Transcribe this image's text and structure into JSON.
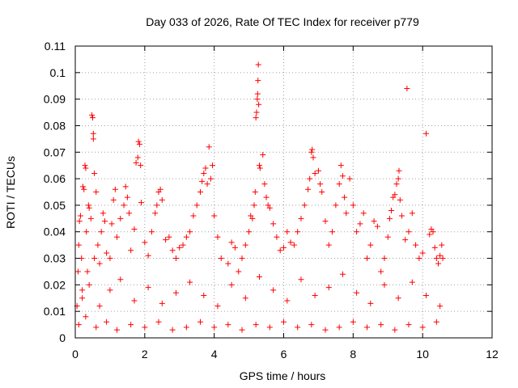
{
  "chart_data": {
    "type": "scatter",
    "title": "Day 033 of 2026, Rate Of TEC Index for receiver p779",
    "xlabel": "GPS time / hours",
    "ylabel": "ROTI / TECUs",
    "xlim": [
      0,
      12
    ],
    "ylim": [
      0,
      0.11
    ],
    "xticks": [
      "0",
      "2",
      "4",
      "6",
      "8",
      "10",
      "12"
    ],
    "yticks": [
      "0",
      "0.01",
      "0.02",
      "0.03",
      "0.04",
      "0.05",
      "0.06",
      "0.07",
      "0.08",
      "0.09",
      "0.1",
      "0.11"
    ],
    "grid": true,
    "marker": "+",
    "marker_color": "#ff0000",
    "series": [
      {
        "name": "p779",
        "points": [
          [
            0.05,
            0.012
          ],
          [
            0.08,
            0.025
          ],
          [
            0.1,
            0.035
          ],
          [
            0.12,
            0.044
          ],
          [
            0.15,
            0.046
          ],
          [
            0.18,
            0.03
          ],
          [
            0.2,
            0.018
          ],
          [
            0.22,
            0.057
          ],
          [
            0.25,
            0.056
          ],
          [
            0.28,
            0.065
          ],
          [
            0.3,
            0.064
          ],
          [
            0.32,
            0.04
          ],
          [
            0.35,
            0.025
          ],
          [
            0.38,
            0.05
          ],
          [
            0.4,
            0.049
          ],
          [
            0.45,
            0.045
          ],
          [
            0.48,
            0.084
          ],
          [
            0.5,
            0.083
          ],
          [
            0.52,
            0.077
          ],
          [
            0.52,
            0.075
          ],
          [
            0.55,
            0.062
          ],
          [
            0.55,
            0.03
          ],
          [
            0.6,
            0.055
          ],
          [
            0.65,
            0.035
          ],
          [
            0.7,
            0.028
          ],
          [
            0.75,
            0.04
          ],
          [
            0.8,
            0.047
          ],
          [
            0.85,
            0.044
          ],
          [
            0.9,
            0.032
          ],
          [
            1.0,
            0.03
          ],
          [
            1.05,
            0.043
          ],
          [
            1.1,
            0.052
          ],
          [
            1.15,
            0.056
          ],
          [
            1.2,
            0.038
          ],
          [
            1.3,
            0.045
          ],
          [
            1.4,
            0.05
          ],
          [
            1.45,
            0.057
          ],
          [
            1.5,
            0.053
          ],
          [
            1.55,
            0.047
          ],
          [
            1.6,
            0.033
          ],
          [
            1.7,
            0.041
          ],
          [
            1.75,
            0.066
          ],
          [
            1.8,
            0.068
          ],
          [
            1.82,
            0.074
          ],
          [
            1.85,
            0.073
          ],
          [
            1.88,
            0.065
          ],
          [
            1.9,
            0.051
          ],
          [
            2.0,
            0.036
          ],
          [
            2.1,
            0.031
          ],
          [
            2.2,
            0.04
          ],
          [
            2.3,
            0.047
          ],
          [
            2.35,
            0.05
          ],
          [
            2.4,
            0.055
          ],
          [
            2.45,
            0.056
          ],
          [
            2.5,
            0.052
          ],
          [
            2.6,
            0.037
          ],
          [
            2.7,
            0.038
          ],
          [
            2.8,
            0.033
          ],
          [
            2.9,
            0.03
          ],
          [
            3.0,
            0.034
          ],
          [
            3.1,
            0.035
          ],
          [
            3.2,
            0.038
          ],
          [
            3.3,
            0.04
          ],
          [
            3.4,
            0.046
          ],
          [
            3.5,
            0.05
          ],
          [
            3.6,
            0.055
          ],
          [
            3.65,
            0.059
          ],
          [
            3.7,
            0.062
          ],
          [
            3.75,
            0.064
          ],
          [
            3.8,
            0.058
          ],
          [
            3.85,
            0.072
          ],
          [
            3.9,
            0.06
          ],
          [
            3.95,
            0.065
          ],
          [
            4.0,
            0.046
          ],
          [
            4.1,
            0.038
          ],
          [
            4.2,
            0.03
          ],
          [
            4.4,
            0.028
          ],
          [
            4.5,
            0.036
          ],
          [
            4.6,
            0.034
          ],
          [
            4.7,
            0.025
          ],
          [
            4.8,
            0.03
          ],
          [
            4.9,
            0.035
          ],
          [
            5.0,
            0.04
          ],
          [
            5.05,
            0.046
          ],
          [
            5.1,
            0.045
          ],
          [
            5.15,
            0.05
          ],
          [
            5.18,
            0.055
          ],
          [
            5.2,
            0.083
          ],
          [
            5.22,
            0.085
          ],
          [
            5.24,
            0.09
          ],
          [
            5.25,
            0.092
          ],
          [
            5.26,
            0.097
          ],
          [
            5.27,
            0.103
          ],
          [
            5.28,
            0.088
          ],
          [
            5.3,
            0.065
          ],
          [
            5.32,
            0.064
          ],
          [
            5.4,
            0.069
          ],
          [
            5.45,
            0.058
          ],
          [
            5.5,
            0.053
          ],
          [
            5.55,
            0.05
          ],
          [
            5.6,
            0.049
          ],
          [
            5.7,
            0.043
          ],
          [
            5.8,
            0.038
          ],
          [
            5.9,
            0.033
          ],
          [
            6.0,
            0.034
          ],
          [
            6.1,
            0.04
          ],
          [
            6.2,
            0.036
          ],
          [
            6.3,
            0.035
          ],
          [
            6.4,
            0.04
          ],
          [
            6.5,
            0.045
          ],
          [
            6.6,
            0.05
          ],
          [
            6.7,
            0.056
          ],
          [
            6.75,
            0.06
          ],
          [
            6.8,
            0.07
          ],
          [
            6.82,
            0.071
          ],
          [
            6.85,
            0.068
          ],
          [
            6.9,
            0.062
          ],
          [
            7.0,
            0.063
          ],
          [
            7.05,
            0.058
          ],
          [
            7.1,
            0.055
          ],
          [
            7.2,
            0.044
          ],
          [
            7.3,
            0.035
          ],
          [
            7.4,
            0.04
          ],
          [
            7.5,
            0.05
          ],
          [
            7.6,
            0.058
          ],
          [
            7.65,
            0.065
          ],
          [
            7.7,
            0.061
          ],
          [
            7.75,
            0.053
          ],
          [
            7.8,
            0.047
          ],
          [
            7.9,
            0.06
          ],
          [
            8.0,
            0.05
          ],
          [
            8.1,
            0.04
          ],
          [
            8.2,
            0.043
          ],
          [
            8.3,
            0.047
          ],
          [
            8.4,
            0.03
          ],
          [
            8.5,
            0.035
          ],
          [
            8.6,
            0.044
          ],
          [
            8.7,
            0.042
          ],
          [
            8.8,
            0.025
          ],
          [
            8.9,
            0.03
          ],
          [
            9.0,
            0.038
          ],
          [
            9.05,
            0.045
          ],
          [
            9.1,
            0.048
          ],
          [
            9.15,
            0.053
          ],
          [
            9.2,
            0.054
          ],
          [
            9.25,
            0.058
          ],
          [
            9.3,
            0.06
          ],
          [
            9.32,
            0.063
          ],
          [
            9.35,
            0.052
          ],
          [
            9.4,
            0.046
          ],
          [
            9.5,
            0.037
          ],
          [
            9.55,
            0.094
          ],
          [
            9.6,
            0.04
          ],
          [
            9.7,
            0.047
          ],
          [
            9.8,
            0.035
          ],
          [
            9.9,
            0.03
          ],
          [
            10.0,
            0.032
          ],
          [
            10.1,
            0.077
          ],
          [
            10.2,
            0.039
          ],
          [
            10.25,
            0.041
          ],
          [
            10.3,
            0.04
          ],
          [
            10.35,
            0.034
          ],
          [
            10.4,
            0.03
          ],
          [
            10.45,
            0.028
          ],
          [
            10.5,
            0.031
          ],
          [
            10.55,
            0.035
          ],
          [
            10.58,
            0.03
          ],
          [
            0.1,
            0.005
          ],
          [
            0.3,
            0.008
          ],
          [
            0.6,
            0.004
          ],
          [
            0.9,
            0.006
          ],
          [
            1.2,
            0.003
          ],
          [
            1.6,
            0.005
          ],
          [
            2.0,
            0.004
          ],
          [
            2.4,
            0.006
          ],
          [
            2.8,
            0.003
          ],
          [
            3.2,
            0.004
          ],
          [
            3.6,
            0.006
          ],
          [
            4.0,
            0.004
          ],
          [
            4.4,
            0.005
          ],
          [
            4.8,
            0.003
          ],
          [
            5.2,
            0.005
          ],
          [
            5.6,
            0.004
          ],
          [
            6.0,
            0.006
          ],
          [
            6.4,
            0.004
          ],
          [
            6.8,
            0.005
          ],
          [
            7.2,
            0.003
          ],
          [
            7.6,
            0.004
          ],
          [
            8.0,
            0.006
          ],
          [
            8.4,
            0.004
          ],
          [
            8.8,
            0.005
          ],
          [
            9.2,
            0.003
          ],
          [
            9.6,
            0.005
          ],
          [
            10.0,
            0.004
          ],
          [
            10.4,
            0.006
          ],
          [
            0.2,
            0.015
          ],
          [
            0.4,
            0.02
          ],
          [
            0.7,
            0.012
          ],
          [
            1.0,
            0.018
          ],
          [
            1.3,
            0.022
          ],
          [
            1.7,
            0.014
          ],
          [
            2.1,
            0.019
          ],
          [
            2.5,
            0.013
          ],
          [
            2.9,
            0.017
          ],
          [
            3.3,
            0.021
          ],
          [
            3.7,
            0.016
          ],
          [
            4.1,
            0.012
          ],
          [
            4.5,
            0.02
          ],
          [
            4.9,
            0.015
          ],
          [
            5.3,
            0.023
          ],
          [
            5.7,
            0.018
          ],
          [
            6.1,
            0.014
          ],
          [
            6.5,
            0.022
          ],
          [
            6.9,
            0.016
          ],
          [
            7.3,
            0.019
          ],
          [
            7.7,
            0.024
          ],
          [
            8.1,
            0.017
          ],
          [
            8.5,
            0.013
          ],
          [
            8.9,
            0.02
          ],
          [
            9.3,
            0.015
          ],
          [
            9.7,
            0.021
          ],
          [
            10.1,
            0.016
          ],
          [
            10.5,
            0.012
          ]
        ]
      }
    ]
  }
}
